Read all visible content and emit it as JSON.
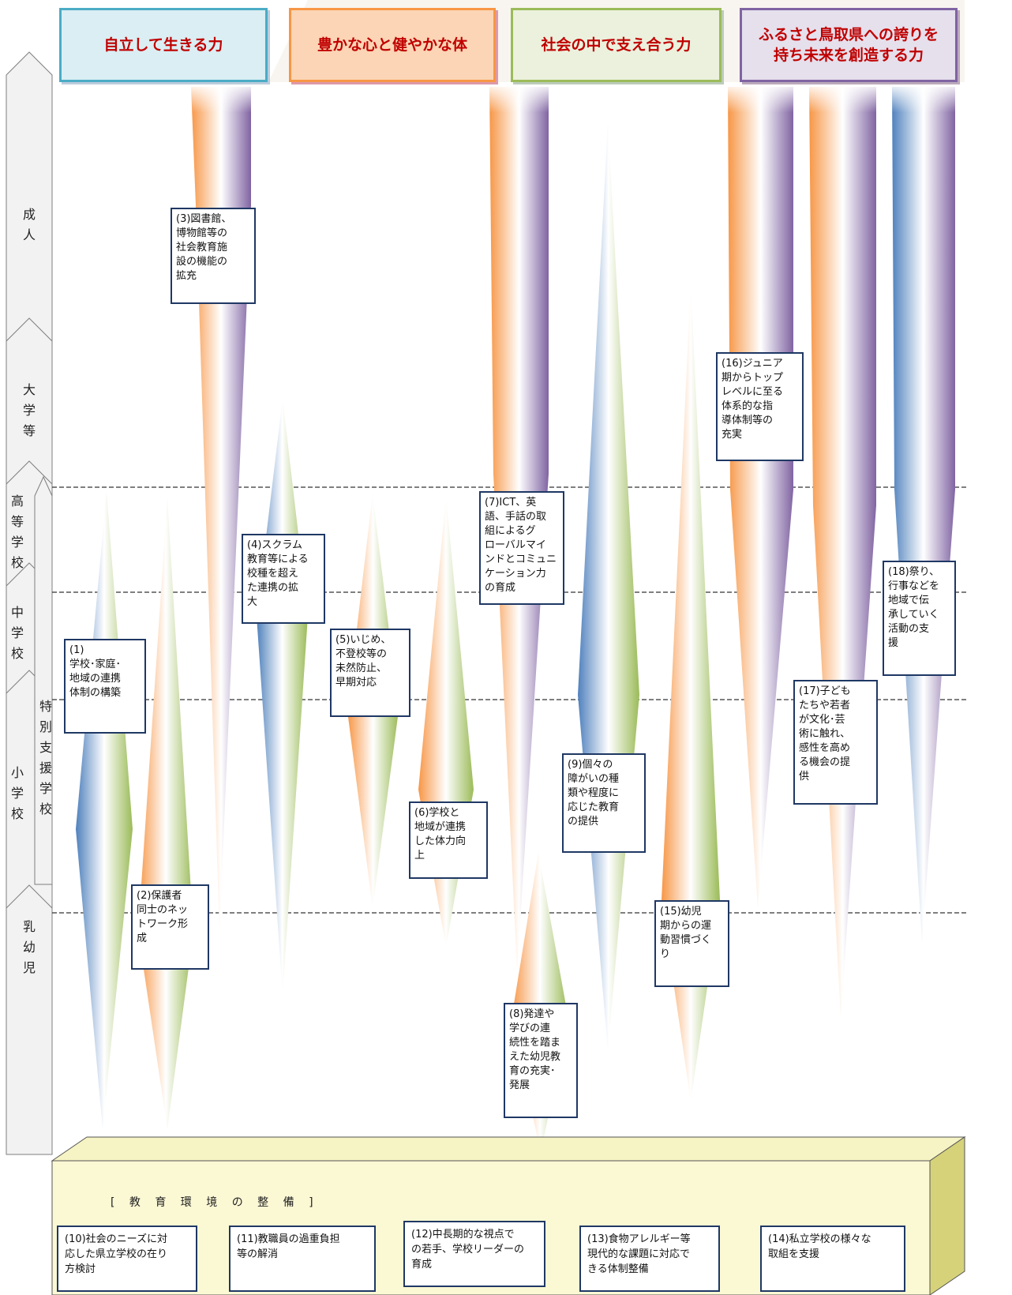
{
  "headers": [
    {
      "label": "自立して生きる力",
      "color": "#daeef3",
      "border": "#4bacc6"
    },
    {
      "label": "豊かな心と健やかな体",
      "color": "#fbd5b5",
      "border": "#f79646"
    },
    {
      "label": "社会の中で支え合う力",
      "color": "#ebf1dd",
      "border": "#9bbb59"
    },
    {
      "label": "ふるさと鳥取県への誇りを\n持ち未来を創造する力",
      "color": "#e5e0ec",
      "border": "#8064a2"
    }
  ],
  "stages": [
    {
      "label": "成人"
    },
    {
      "label": "大学等"
    },
    {
      "label": "高等学校"
    },
    {
      "label": "中学校"
    },
    {
      "label": "小学校"
    },
    {
      "label": "乳幼児"
    }
  ],
  "special_support": "特別支援学校",
  "measures": [
    {
      "text": "(1)\n学校･家庭･\n地域の連携\n体制の構築"
    },
    {
      "text": "(2)保護者\n同士のネッ\nトワーク形\n成"
    },
    {
      "text": "(3)図書館、\n博物館等の\n社会教育施\n設の機能の\n拡充"
    },
    {
      "text": "(4)スクラム\n教育等による\n校種を超え\nた連携の拡\n大"
    },
    {
      "text": "(5)いじめ、\n不登校等の\n未然防止、\n早期対応"
    },
    {
      "text": "(6)学校と\n地域が連携\nした体力向\n上"
    },
    {
      "text": "(7)ICT、英\n語、手話の取\n組によるグ\nローバルマイ\nンドとコミュニ\nケーション力\nの育成"
    },
    {
      "text": "(8)発達や\n学びの連\n続性を踏ま\nえた幼児教\n育の充実･\n発展"
    },
    {
      "text": "(9)個々の\n障がいの種\n類や程度に\n応じた教育\nの提供"
    },
    {
      "text": "(15)幼児\n期からの運\n動習慣づく\nり"
    },
    {
      "text": "(16)ジュニア\n期からトップ\nレベルに至る\n体系的な指\n導体制等の\n充実"
    },
    {
      "text": "(17)子ども\nたちや若者\nが文化･芸\n術に触れ、\n感性を高め\nる機会の提\n供"
    },
    {
      "text": "(18)祭り、\n行事などを\n地域で伝\n承していく\n活動の支\n援"
    }
  ],
  "environment": {
    "title": "[ 教 育 環 境 の 整 備 ]",
    "items": [
      {
        "text": "(10)社会のニーズに対\n応した県立学校の在り\n方検討"
      },
      {
        "text": "(11)教職員の過重負担\n等の解消"
      },
      {
        "text": "(12)中長期的な視点で\nの若手、学校リーダーの\n育成"
      },
      {
        "text": "(13)食物アレルギー等\n現代的な課題に対応で\nきる体制整備"
      },
      {
        "text": "(14)私立学校の様々な\n取組を支援"
      }
    ]
  },
  "colors": {
    "blue": "#4f81bd",
    "orange": "#f79646",
    "green": "#9bbb59",
    "purple": "#8064a2",
    "box_border": "#1f3864"
  }
}
